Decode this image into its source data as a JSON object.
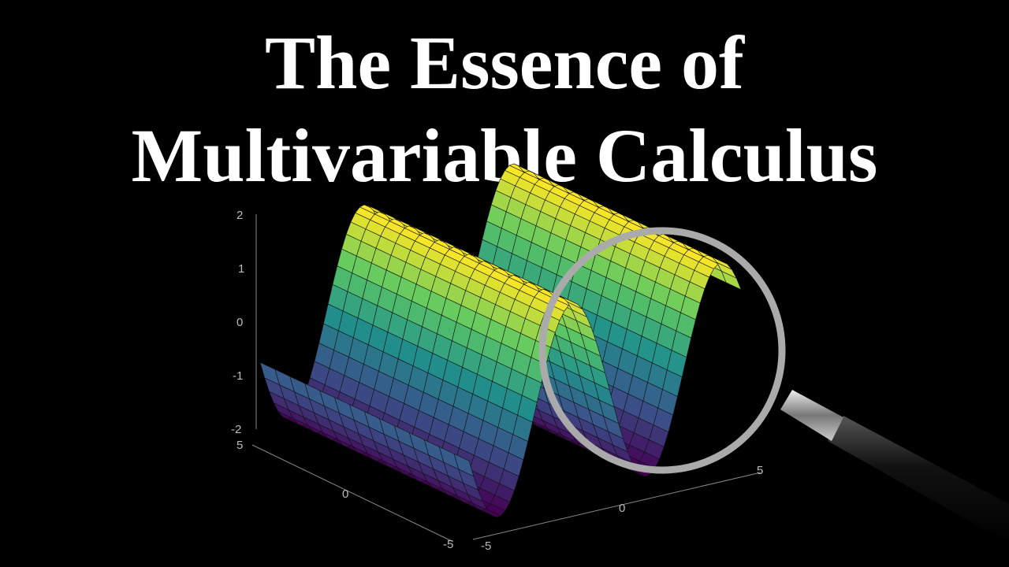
{
  "title": {
    "line1": "The Essence of",
    "line2": "Multivariable Calculus"
  },
  "plot": {
    "z_ticks": [
      "2",
      "1",
      "0",
      "-1",
      "-2"
    ],
    "y_ticks": [
      "5",
      "0",
      "-5"
    ],
    "x_ticks": [
      "-5",
      "0",
      "5"
    ]
  }
}
